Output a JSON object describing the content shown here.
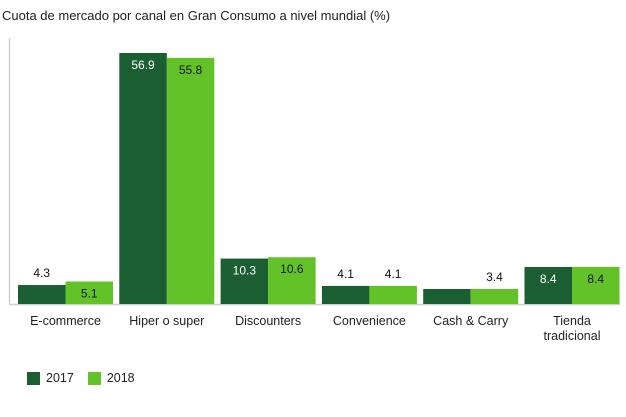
{
  "chart_data": {
    "type": "bar",
    "title": "Cuota de mercado por canal en Gran Consumo a nivel mundial (%)",
    "categories": [
      "E-commerce",
      "Hiper o super",
      "Discounters",
      "Convenience",
      "Cash & Carry",
      "Tienda tradicional"
    ],
    "series": [
      {
        "name": "2017",
        "color": "#1a5e32",
        "values": [
          4.3,
          56.9,
          10.3,
          4.1,
          3.4,
          8.4
        ],
        "labels": [
          "4.3",
          "56.9",
          "10.3",
          "4.1",
          "",
          "8.4"
        ]
      },
      {
        "name": "2018",
        "color": "#63c227",
        "values": [
          5.1,
          55.8,
          10.6,
          4.1,
          3.4,
          8.4
        ],
        "labels": [
          "5.1",
          "55.8",
          "10.6",
          "4.1",
          "3.4",
          "8.4"
        ]
      }
    ],
    "ylim": [
      0,
      60
    ],
    "grid": false,
    "legend_position": "bottom-left"
  }
}
